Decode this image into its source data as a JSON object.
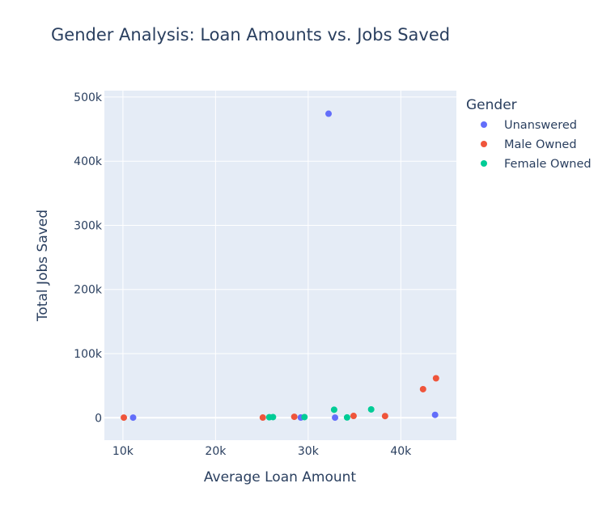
{
  "chart_data": {
    "type": "scatter",
    "title": "Gender Analysis: Loan Amounts vs. Jobs Saved",
    "xlabel": "Average Loan Amount",
    "ylabel": "Total Jobs Saved",
    "xlim": [
      8000,
      46000
    ],
    "ylim": [
      -35000,
      510000
    ],
    "x_ticks": [
      {
        "value": 10000,
        "label": "10k"
      },
      {
        "value": 20000,
        "label": "20k"
      },
      {
        "value": 30000,
        "label": "30k"
      },
      {
        "value": 40000,
        "label": "40k"
      }
    ],
    "y_ticks": [
      {
        "value": 0,
        "label": "0"
      },
      {
        "value": 100000,
        "label": "100k"
      },
      {
        "value": 200000,
        "label": "200k"
      },
      {
        "value": 300000,
        "label": "300k"
      },
      {
        "value": 400000,
        "label": "400k"
      },
      {
        "value": 500000,
        "label": "500k"
      }
    ],
    "grid": true,
    "legend": {
      "title": "Gender",
      "placement": "right"
    },
    "plot_background": "#e5ecf6",
    "series": [
      {
        "name": "Unanswered",
        "color": "#636efa",
        "points": [
          {
            "x": 11100,
            "y": 200
          },
          {
            "x": 29200,
            "y": 300
          },
          {
            "x": 32200,
            "y": 474000
          },
          {
            "x": 32900,
            "y": 200
          },
          {
            "x": 43700,
            "y": 4500
          }
        ]
      },
      {
        "name": "Male Owned",
        "color": "#EF553B",
        "points": [
          {
            "x": 10100,
            "y": 200
          },
          {
            "x": 25100,
            "y": 300
          },
          {
            "x": 28500,
            "y": 1500
          },
          {
            "x": 34900,
            "y": 2800
          },
          {
            "x": 38300,
            "y": 2600
          },
          {
            "x": 42400,
            "y": 44500
          },
          {
            "x": 43800,
            "y": 61500
          }
        ]
      },
      {
        "name": "Female Owned",
        "color": "#00cc96",
        "points": [
          {
            "x": 25800,
            "y": 800
          },
          {
            "x": 26200,
            "y": 1000
          },
          {
            "x": 29600,
            "y": 1000
          },
          {
            "x": 32800,
            "y": 12500
          },
          {
            "x": 34200,
            "y": 500
          },
          {
            "x": 36800,
            "y": 13000
          }
        ]
      }
    ]
  }
}
